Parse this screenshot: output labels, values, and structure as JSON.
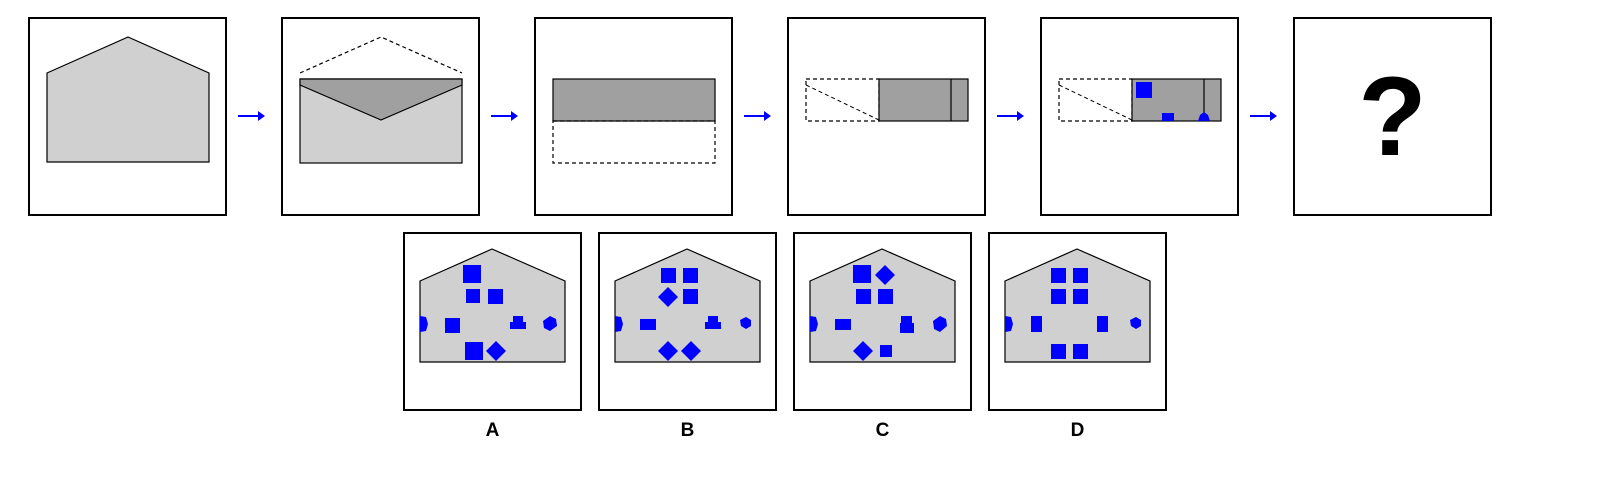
{
  "colors": {
    "fill_light": "#d0d0d0",
    "fill_dark": "#a0a0a0",
    "shape_blue": "#0000ff",
    "arrow_blue": "#0000ff",
    "outline": "#000000"
  },
  "sequence": {
    "question_mark": "?",
    "steps": [
      "envelope-closed",
      "envelope-flap-open",
      "envelope-flap-folded",
      "envelope-folded-in-half",
      "envelope-holes-punched",
      "unknown"
    ]
  },
  "options": [
    {
      "label": "A",
      "icons": [
        "square",
        "square",
        "square",
        "hexagon",
        "square",
        "stamp-shape",
        "hexagon",
        "square",
        "diamond"
      ]
    },
    {
      "label": "B",
      "icons": [
        "square",
        "square",
        "diamond",
        "square",
        "hexagon",
        "rectangle",
        "stamp-shape",
        "hexagon",
        "diamond",
        "diamond"
      ]
    },
    {
      "label": "C",
      "icons": [
        "square",
        "diamond",
        "square",
        "square",
        "hexagon",
        "rectangle",
        "stamp-shape",
        "hexagon",
        "diamond",
        "square"
      ]
    },
    {
      "label": "D",
      "icons": [
        "square",
        "square",
        "square",
        "square",
        "hexagon",
        "rectangle",
        "rectangle",
        "hexagon",
        "square",
        "square"
      ]
    }
  ]
}
